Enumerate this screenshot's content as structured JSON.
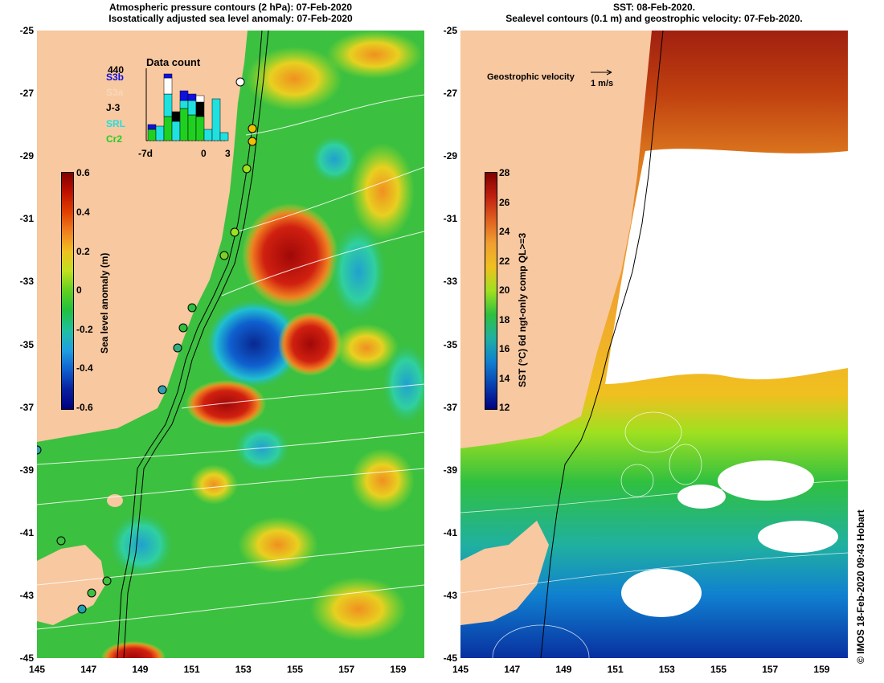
{
  "left_panel": {
    "title_line1": "Atmospheric pressure contours (2 hPa): 07-Feb-2020",
    "title_line2": "Isostatically adjusted sea level anomaly: 07-Feb-2020",
    "colorbar": {
      "label": "Sea level anomaly (m)",
      "ticks": [
        "0.6",
        "0.4",
        "0.2",
        "0",
        "-0.2",
        "-0.4",
        "-0.6"
      ]
    },
    "data_count": {
      "title": "Data count",
      "max_label": "440",
      "satellites": [
        {
          "name": "S3b",
          "color": "#1010e0"
        },
        {
          "name": "S3a",
          "color": "#f8d8b8"
        },
        {
          "name": "J-3",
          "color": "#000000"
        },
        {
          "name": "SRL",
          "color": "#20e0e0"
        },
        {
          "name": "Cr2",
          "color": "#20d020"
        }
      ],
      "x_ticks": [
        "-7d",
        "0",
        "3"
      ]
    }
  },
  "right_panel": {
    "title_line1": "SST: 08-Feb-2020.",
    "title_line2": "Sealevel contours (0.1 m) and geostrophic velocity: 07-Feb-2020.",
    "velocity_legend_label": "Geostrophic velocity",
    "velocity_legend_unit": "1 m/s",
    "colorbar": {
      "label": "SST (°C) 6d ngt-only comp QL>=3",
      "ticks": [
        "28",
        "26",
        "24",
        "22",
        "20",
        "18",
        "16",
        "14",
        "12"
      ]
    }
  },
  "axes": {
    "lat_labels": [
      "-25",
      "-27",
      "-29",
      "-31",
      "-33",
      "-35",
      "-37",
      "-39",
      "-41",
      "-43",
      "-45"
    ],
    "lon_labels": [
      "145",
      "147",
      "149",
      "151",
      "153",
      "155",
      "157",
      "159"
    ]
  },
  "copyright": "© IMOS 18-Feb-2020 09:43 Hobart",
  "colors": {
    "land": "#f8c8a0",
    "ocean_green": "#30c030",
    "sla_high": "#b01010",
    "sla_low": "#1040c0",
    "sst_warm": "#c05010",
    "sst_cold": "#1030a0"
  }
}
